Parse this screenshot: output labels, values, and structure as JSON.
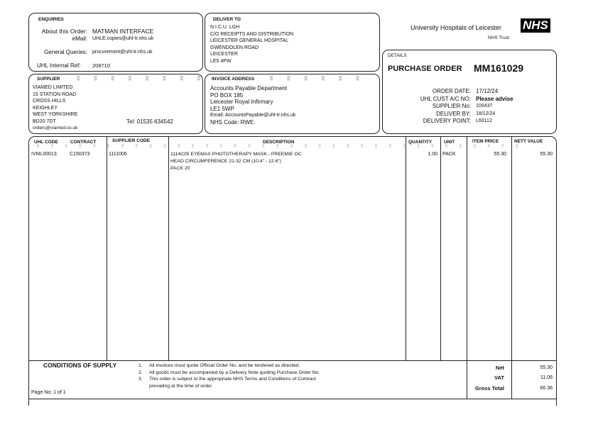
{
  "enquiries": {
    "heading": "ENQUIRIES",
    "about_label": "About this Order:",
    "about_value": "MATMAN INTERFACE",
    "email_label": "eMail:",
    "email_value": "UHLE.copies@uhl-tr.nhs.uk",
    "general_label": "General Queries:",
    "general_value": "procurement@uhl-tr.nhs.uk",
    "ref_label": "UHL Internal Ref:",
    "ref_value": "208710"
  },
  "supplier": {
    "heading": "SUPPLIER",
    "lines": [
      "VIAMED LIMITED",
      "15 STATION ROAD",
      "CROSS HILLS",
      "KEIGHLEY",
      "WEST YORKSHIRE",
      "BD20 7DT",
      "orders@viamed.co.uk"
    ],
    "tel": "Tel: 01535 634542"
  },
  "deliver_to": {
    "heading": "DELIVER TO",
    "lines": [
      "N.I.C.U. LGH",
      "C/O RECEIPTS AND DISTRIBUTION",
      "LEICESTER GENERAL HOSPITAL",
      "GWENDOLEN ROAD",
      "LEICESTER",
      "LE5 4PW"
    ]
  },
  "invoice": {
    "heading": "INVOICE ADDRESS",
    "lines": [
      "Accounts Payable Department",
      "PO BOX 185",
      "Leicester Royal Infirmary",
      "LE1 5WP",
      "Email: AccountsPayable@uhl-tr.nhs.uk",
      "NHS Code: RWE."
    ]
  },
  "logo": {
    "org": "University Hospitals of Leicester",
    "badge": "NHS",
    "trust": "NHS Trust",
    "badge_color": "#000000"
  },
  "details": {
    "heading": "DETAILS",
    "title": "PURCHASE ORDER",
    "number": "MM161029",
    "fields": [
      {
        "label": "ORDER DATE:",
        "value": "17/12/24"
      },
      {
        "label": "UHL CUST A/C NO:",
        "value": "Please advise"
      },
      {
        "label": "SUPPLIER No:",
        "value": "100437"
      },
      {
        "label": "DELIVER BY:",
        "value": "18/12/24"
      },
      {
        "label": "DELIVERY POINT:",
        "value": "L60112"
      }
    ]
  },
  "table": {
    "headers": {
      "uhl_code": "UHL CODE",
      "contract": "CONTRACT",
      "supplier_code": "SUPPLIER CODE",
      "description": "DESCRIPTION",
      "quantity": "QUANTITY",
      "unit": "UNIT",
      "item_price": "ITEM PRICE",
      "nett_value": "NETT VALUE"
    },
    "rows": [
      {
        "uhl_code": "IVML00013",
        "contract": "C150373",
        "supplier_code": "1111006",
        "description": [
          "1114C05 EYEMAX PHOTOTHERAPY MASK - PREEMIE OC",
          "HEAD CIRCUMFERENCE 21-32 CM (10.4\" - 12.6\")",
          "PACK 20"
        ],
        "quantity": "1.00",
        "unit": "PACK",
        "item_price": "55.30",
        "nett_value": "55.30"
      }
    ]
  },
  "conditions": {
    "heading": "CONDITIONS OF SUPPLY",
    "items": [
      {
        "n": "1.",
        "text": "All invoices must quote Official Order No. and be tendered as directed."
      },
      {
        "n": "2.",
        "text": "All goods must be accompanied by a Delivery Note quoting Purchase Order No."
      },
      {
        "n": "3.",
        "text": "This order is subject to the appropriate NHS Terms and Conditions of Contract"
      },
      {
        "n": "",
        "text": "prevailing at the time of order."
      }
    ]
  },
  "totals": {
    "net_label": "Net",
    "net": "55.30",
    "vat_label": "VAT",
    "vat": "11.06",
    "gross_label": "Gross Total",
    "gross": "66.36"
  },
  "page": "Page No: 1 of 1"
}
